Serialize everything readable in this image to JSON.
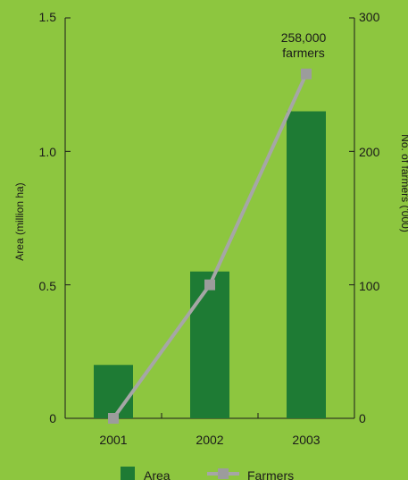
{
  "chart_data": {
    "type": "bar",
    "categories": [
      "2001",
      "2002",
      "2003"
    ],
    "series": [
      {
        "name": "Area",
        "type": "bar",
        "axis": "left",
        "values": [
          0.2,
          0.55,
          1.15
        ]
      },
      {
        "name": "Farmers",
        "type": "line",
        "axis": "right",
        "values": [
          0,
          100,
          258
        ]
      }
    ],
    "ylabel_left": "Area (million ha)",
    "ylabel_right": "No. of farmers ('000)",
    "ylim_left": [
      0,
      1.5
    ],
    "ylim_right": [
      0,
      300
    ],
    "yticks_left": [
      "0",
      "0.5",
      "1.0",
      "1.5"
    ],
    "yticks_right": [
      "0",
      "100",
      "200",
      "300"
    ],
    "annotation": {
      "line1": "258,000",
      "line2": "farmers"
    },
    "legend": {
      "area": "Area",
      "farmers": "Farmers"
    },
    "colors": {
      "background": "#8dc63f",
      "bar": "#1e7b34",
      "line": "#a6a6a6",
      "marker": "#9c9c9c",
      "axis": "#1a1a1a"
    }
  }
}
